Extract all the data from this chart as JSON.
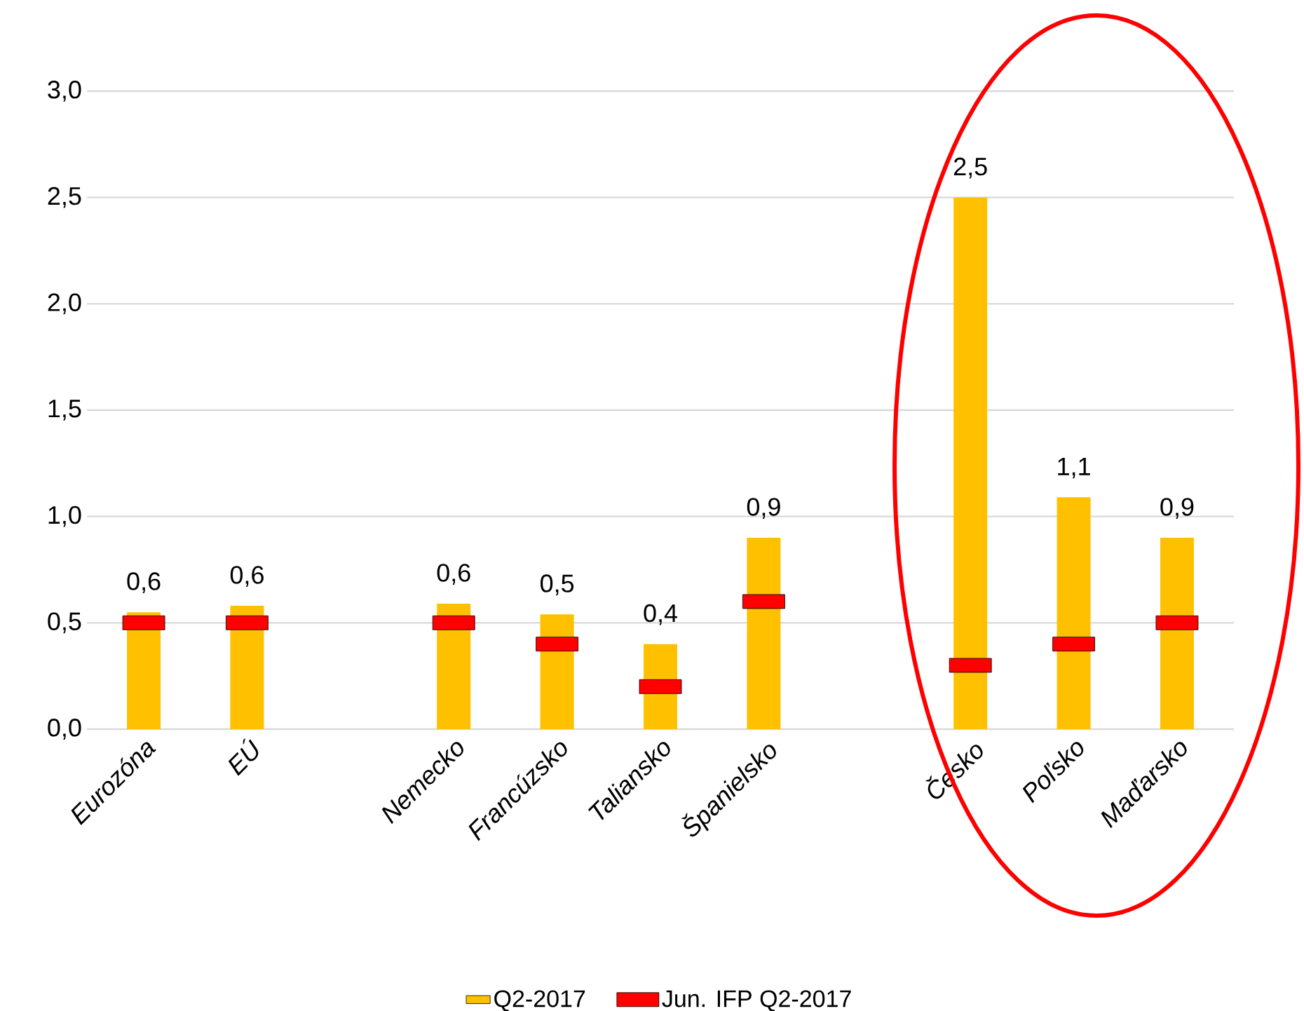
{
  "chart_data": {
    "type": "bar",
    "categories": [
      "Eurozóna",
      "EÚ",
      null,
      "Nemecko",
      "Francúzsko",
      "Taliansko",
      "Španielsko",
      null,
      "Česko",
      "Poľsko",
      "Maďarsko"
    ],
    "series": [
      {
        "name": "Q2-2017",
        "type": "bar",
        "color": "#ffc000",
        "values": [
          0.55,
          0.58,
          null,
          0.59,
          0.54,
          0.4,
          0.9,
          null,
          2.5,
          1.09,
          0.9
        ],
        "value_labels": [
          "0,6",
          "0,6",
          null,
          "0,6",
          "0,5",
          "0,4",
          "0,9",
          null,
          "2,5",
          "1,1",
          "0,9"
        ]
      },
      {
        "name": "Jun. IFP Q2-2017",
        "type": "scatter",
        "color": "#ff0000",
        "values": [
          0.5,
          0.5,
          null,
          0.5,
          0.4,
          0.2,
          0.6,
          null,
          0.3,
          0.4,
          0.5
        ]
      }
    ],
    "ylim": [
      0,
      3
    ],
    "yticks": [
      {
        "value": 0,
        "label": "0,0"
      },
      {
        "value": 0.5,
        "label": "0,5"
      },
      {
        "value": 1,
        "label": "1,0"
      },
      {
        "value": 1.5,
        "label": "1,5"
      },
      {
        "value": 2,
        "label": "2,0"
      },
      {
        "value": 2.5,
        "label": "2,5"
      },
      {
        "value": 3,
        "label": "3,0"
      }
    ],
    "grid": "y",
    "legend": "bottom"
  }
}
